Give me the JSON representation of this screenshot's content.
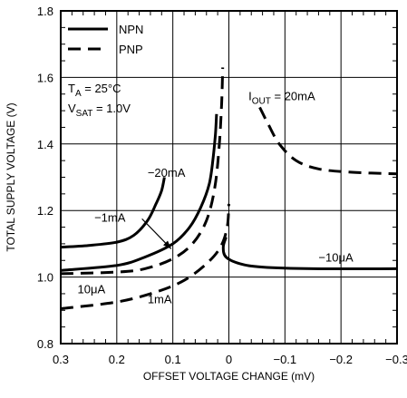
{
  "chart_data": {
    "type": "line",
    "xlabel": "OFFSET VOLTAGE CHANGE (mV)",
    "ylabel": "TOTAL SUPPLY VOLTAGE (V)",
    "xlim": [
      0.3,
      -0.3
    ],
    "ylim": [
      0.8,
      1.8
    ],
    "x_reversed": true,
    "grid": true,
    "x_ticks": [
      0.3,
      0.2,
      0.1,
      0,
      -0.1,
      -0.2,
      -0.3
    ],
    "x_tick_labels": [
      "0.3",
      "0.2",
      "0.1",
      "0",
      "−0.1",
      "−0.2",
      "−0.3"
    ],
    "y_ticks": [
      0.8,
      1.0,
      1.2,
      1.4,
      1.6,
      1.8
    ],
    "y_tick_labels": [
      "0.8",
      "1.0",
      "1.2",
      "1.4",
      "1.6",
      "1.8"
    ],
    "legend": {
      "position": "top-left",
      "entries": [
        {
          "name": "NPN",
          "style": "solid"
        },
        {
          "name": "PNP",
          "style": "dashed"
        }
      ]
    },
    "conditions": [
      {
        "main": "T",
        "sub": "A",
        "rest": " = 25°C"
      },
      {
        "main": "V",
        "sub": "SAT",
        "rest": " = 1.0V"
      }
    ],
    "series": [
      {
        "type": "NPN",
        "style": "solid",
        "label": "−20mA",
        "points": [
          [
            0.3,
            1.09
          ],
          [
            0.25,
            1.095
          ],
          [
            0.2,
            1.105
          ],
          [
            0.17,
            1.125
          ],
          [
            0.145,
            1.17
          ],
          [
            0.13,
            1.22
          ],
          [
            0.12,
            1.26
          ],
          [
            0.115,
            1.3
          ]
        ]
      },
      {
        "type": "NPN",
        "style": "solid",
        "label": "−1mA",
        "points": [
          [
            0.3,
            1.02
          ],
          [
            0.2,
            1.035
          ],
          [
            0.15,
            1.06
          ],
          [
            0.1,
            1.1
          ],
          [
            0.07,
            1.15
          ],
          [
            0.05,
            1.21
          ],
          [
            0.035,
            1.28
          ],
          [
            0.028,
            1.36
          ],
          [
            0.024,
            1.43
          ],
          [
            0.022,
            1.49
          ]
        ]
      },
      {
        "type": "NPN",
        "style": "solid",
        "label": "−10μA",
        "points": [
          [
            0.005,
            1.12
          ],
          [
            0.01,
            1.09
          ],
          [
            0.005,
            1.06
          ],
          [
            -0.02,
            1.04
          ],
          [
            -0.06,
            1.03
          ],
          [
            -0.15,
            1.025
          ],
          [
            -0.3,
            1.025
          ]
        ]
      },
      {
        "type": "PNP",
        "style": "dashed",
        "label": "10μA",
        "points": [
          [
            0.3,
            1.01
          ],
          [
            0.2,
            1.015
          ],
          [
            0.15,
            1.025
          ],
          [
            0.1,
            1.055
          ],
          [
            0.065,
            1.1
          ],
          [
            0.04,
            1.17
          ],
          [
            0.025,
            1.27
          ],
          [
            0.017,
            1.4
          ],
          [
            0.013,
            1.52
          ],
          [
            0.011,
            1.63
          ]
        ]
      },
      {
        "type": "PNP",
        "style": "dashed",
        "label": "1mA",
        "points": [
          [
            0.3,
            0.905
          ],
          [
            0.2,
            0.925
          ],
          [
            0.13,
            0.955
          ],
          [
            0.08,
            0.99
          ],
          [
            0.04,
            1.04
          ],
          [
            0.015,
            1.09
          ],
          [
            0.003,
            1.15
          ],
          [
            0.0,
            1.22
          ]
        ]
      },
      {
        "type": "PNP",
        "style": "dashed",
        "label": "I_OUT = 20mA",
        "points": [
          [
            -0.055,
            1.51
          ],
          [
            -0.07,
            1.46
          ],
          [
            -0.09,
            1.4
          ],
          [
            -0.12,
            1.35
          ],
          [
            -0.16,
            1.325
          ],
          [
            -0.22,
            1.315
          ],
          [
            -0.3,
            1.31
          ]
        ]
      }
    ],
    "annotations": [
      {
        "text": "−20mA",
        "x": 0.145,
        "y": 1.315
      },
      {
        "text": "−1mA",
        "x": 0.24,
        "y": 1.18
      },
      {
        "text": "−10μA",
        "x": -0.16,
        "y": 1.06
      },
      {
        "text": "10μA",
        "x": 0.27,
        "y": 0.965
      },
      {
        "text": "1mA",
        "x": 0.145,
        "y": 0.935
      },
      {
        "main": "I",
        "sub": "OUT",
        "rest": " = 20mA",
        "x": -0.035,
        "y": 1.545
      }
    ],
    "arrow": {
      "from": [
        0.155,
        1.175
      ],
      "to": [
        0.103,
        1.085
      ]
    }
  }
}
